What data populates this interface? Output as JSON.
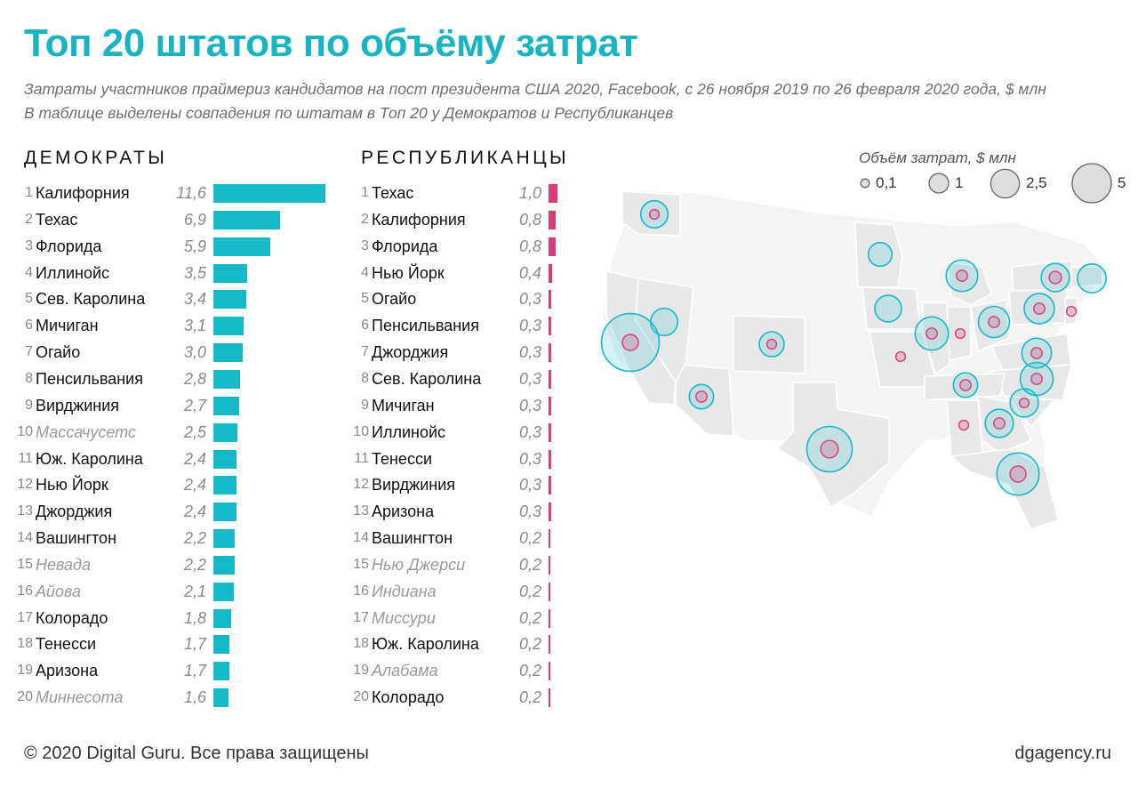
{
  "header": {
    "title": "Топ 20 штатов по объёму затрат",
    "subtitle_1": "Затраты участников праймериз кандидатов на пост президента США 2020, Facebook, с 26 ноября 2019 по 26 февраля 2020 года, $ млн",
    "subtitle_2": "В таблице выделены совпадения по штатам в Топ 20 у Демократов и Республиканцев"
  },
  "colors": {
    "title": "#18b4c4",
    "dem_bar": "#17b9c9",
    "rep_bar": "#de3a78",
    "dem_circle": "#17b9c9",
    "rep_circle": "#de3a78",
    "map_fill": "#ececec",
    "map_border": "#ffffff"
  },
  "chart_data": [
    {
      "type": "bar",
      "name": "ДЕМОКРАТЫ",
      "orientation": "horizontal",
      "unit": "$ млн",
      "rows": [
        {
          "rank": "1",
          "state": "Калифорния",
          "value": 11.6,
          "label": "11,6",
          "matched": true
        },
        {
          "rank": "2",
          "state": "Техас",
          "value": 6.9,
          "label": "6,9",
          "matched": true
        },
        {
          "rank": "3",
          "state": "Флорида",
          "value": 5.9,
          "label": "5,9",
          "matched": true
        },
        {
          "rank": "4",
          "state": "Иллинойс",
          "value": 3.5,
          "label": "3,5",
          "matched": true
        },
        {
          "rank": "5",
          "state": "Сев. Каролина",
          "value": 3.4,
          "label": "3,4",
          "matched": true
        },
        {
          "rank": "6",
          "state": "Мичиган",
          "value": 3.1,
          "label": "3,1",
          "matched": true
        },
        {
          "rank": "7",
          "state": "Огайо",
          "value": 3.0,
          "label": "3,0",
          "matched": true
        },
        {
          "rank": "8",
          "state": "Пенсильвания",
          "value": 2.8,
          "label": "2,8",
          "matched": true
        },
        {
          "rank": "9",
          "state": "Вирджиния",
          "value": 2.7,
          "label": "2,7",
          "matched": true
        },
        {
          "rank": "10",
          "state": "Массачусетс",
          "value": 2.5,
          "label": "2,5",
          "matched": false
        },
        {
          "rank": "11",
          "state": "Юж. Каролина",
          "value": 2.4,
          "label": "2,4",
          "matched": true
        },
        {
          "rank": "12",
          "state": "Нью Йорк",
          "value": 2.4,
          "label": "2,4",
          "matched": true
        },
        {
          "rank": "13",
          "state": "Джорджия",
          "value": 2.4,
          "label": "2,4",
          "matched": true
        },
        {
          "rank": "14",
          "state": "Вашингтон",
          "value": 2.2,
          "label": "2,2",
          "matched": true
        },
        {
          "rank": "15",
          "state": "Невада",
          "value": 2.2,
          "label": "2,2",
          "matched": false
        },
        {
          "rank": "16",
          "state": "Айова",
          "value": 2.1,
          "label": "2,1",
          "matched": false
        },
        {
          "rank": "17",
          "state": "Колорадо",
          "value": 1.8,
          "label": "1,8",
          "matched": true
        },
        {
          "rank": "18",
          "state": "Тенесси",
          "value": 1.7,
          "label": "1,7",
          "matched": true
        },
        {
          "rank": "19",
          "state": "Аризона",
          "value": 1.7,
          "label": "1,7",
          "matched": true
        },
        {
          "rank": "20",
          "state": "Миннесота",
          "value": 1.6,
          "label": "1,6",
          "matched": false
        }
      ]
    },
    {
      "type": "bar",
      "name": "РЕСПУБЛИКАНЦЫ",
      "orientation": "horizontal",
      "unit": "$ млн",
      "rows": [
        {
          "rank": "1",
          "state": "Техас",
          "value": 1.0,
          "label": "1,0",
          "matched": true
        },
        {
          "rank": "2",
          "state": "Калифорния",
          "value": 0.8,
          "label": "0,8",
          "matched": true
        },
        {
          "rank": "3",
          "state": "Флорида",
          "value": 0.8,
          "label": "0,8",
          "matched": true
        },
        {
          "rank": "4",
          "state": "Нью Йорк",
          "value": 0.4,
          "label": "0,4",
          "matched": true
        },
        {
          "rank": "5",
          "state": "Огайо",
          "value": 0.3,
          "label": "0,3",
          "matched": true
        },
        {
          "rank": "6",
          "state": "Пенсильвания",
          "value": 0.3,
          "label": "0,3",
          "matched": true
        },
        {
          "rank": "7",
          "state": "Джорджия",
          "value": 0.3,
          "label": "0,3",
          "matched": true
        },
        {
          "rank": "8",
          "state": "Сев. Каролина",
          "value": 0.3,
          "label": "0,3",
          "matched": true
        },
        {
          "rank": "9",
          "state": "Мичиган",
          "value": 0.3,
          "label": "0,3",
          "matched": true
        },
        {
          "rank": "10",
          "state": "Иллинойс",
          "value": 0.3,
          "label": "0,3",
          "matched": true
        },
        {
          "rank": "11",
          "state": "Тенесси",
          "value": 0.3,
          "label": "0,3",
          "matched": true
        },
        {
          "rank": "12",
          "state": "Вирджиния",
          "value": 0.3,
          "label": "0,3",
          "matched": true
        },
        {
          "rank": "13",
          "state": "Аризона",
          "value": 0.3,
          "label": "0,3",
          "matched": true
        },
        {
          "rank": "14",
          "state": "Вашингтон",
          "value": 0.2,
          "label": "0,2",
          "matched": true
        },
        {
          "rank": "15",
          "state": "Нью Джерси",
          "value": 0.2,
          "label": "0,2",
          "matched": false
        },
        {
          "rank": "16",
          "state": "Индиана",
          "value": 0.2,
          "label": "0,2",
          "matched": false
        },
        {
          "rank": "17",
          "state": "Миссури",
          "value": 0.2,
          "label": "0,2",
          "matched": false
        },
        {
          "rank": "18",
          "state": "Юж. Каролина",
          "value": 0.2,
          "label": "0,2",
          "matched": true
        },
        {
          "rank": "19",
          "state": "Алабама",
          "value": 0.2,
          "label": "0,2",
          "matched": false
        },
        {
          "rank": "20",
          "state": "Колорадо",
          "value": 0.2,
          "label": "0,2",
          "matched": true
        }
      ]
    }
  ],
  "legend": {
    "title": "Объём затрат, $ млн",
    "items": [
      {
        "value": 0.1,
        "label": "0,1"
      },
      {
        "value": 1,
        "label": "1"
      },
      {
        "value": 2.5,
        "label": "2,5"
      },
      {
        "value": 5,
        "label": "5"
      }
    ]
  },
  "footer": {
    "copyright": "© 2020 Digital Guru. Все права защищены",
    "site": "dgagency.ru"
  }
}
